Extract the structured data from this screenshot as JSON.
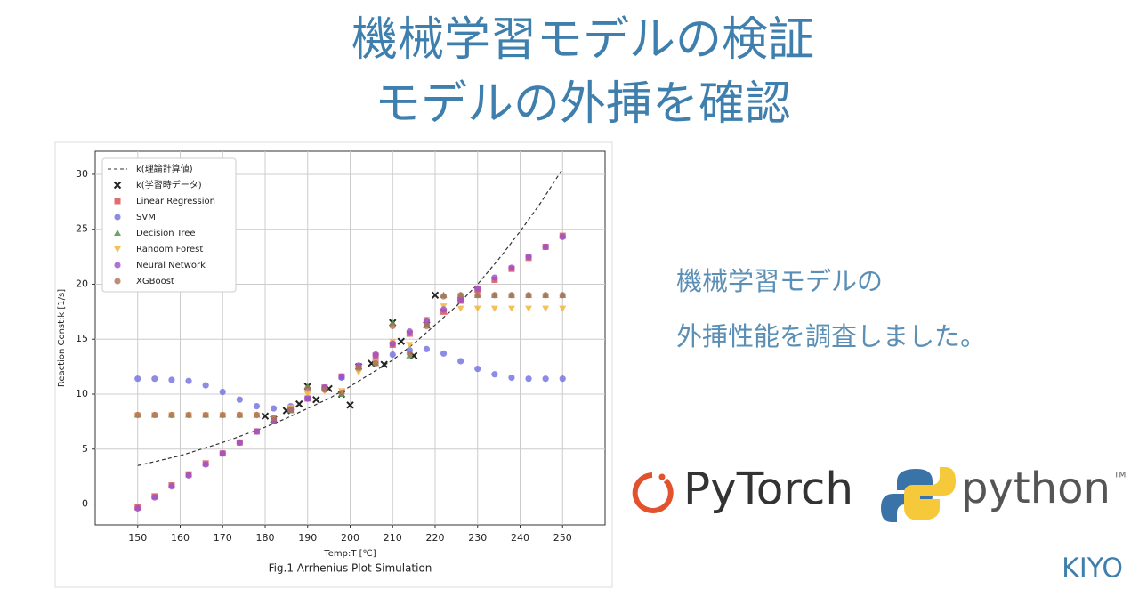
{
  "slide": {
    "title_lines": [
      "機械学習モデルの検証",
      "モデルの外挿を確認"
    ],
    "note_lines": [
      "機械学習モデルの",
      "外挿性能を調査しました。"
    ],
    "logos": [
      "PyTorch",
      "python",
      "TM"
    ],
    "author": "KIYO"
  },
  "chart_data": {
    "type": "scatter",
    "title": "Fig.1 Arrhenius Plot Simulation",
    "x_label": "Temp:T [℃]",
    "y_label": "Reaction Const:k [1/s]",
    "xlim": [
      140,
      260
    ],
    "ylim": [
      -1.9,
      32.1
    ],
    "xticks": [
      150,
      160,
      170,
      180,
      190,
      200,
      210,
      220,
      230,
      240,
      250
    ],
    "yticks": [
      0,
      5,
      10,
      15,
      20,
      25,
      30
    ],
    "grid": true,
    "legend": "upper-left",
    "series": [
      {
        "name": "k(理論計算値)",
        "color": "#333333",
        "marker": "dashed-line",
        "x": [
          150,
          155,
          160,
          165,
          170,
          175,
          180,
          185,
          190,
          195,
          200,
          205,
          210,
          215,
          220,
          225,
          230,
          235,
          240,
          245,
          250
        ],
        "values": [
          3.5,
          3.95,
          4.4,
          5.0,
          5.6,
          6.3,
          7.0,
          7.8,
          8.7,
          9.6,
          10.7,
          11.9,
          13.1,
          14.6,
          16.3,
          18.0,
          20.0,
          22.3,
          24.8,
          27.5,
          30.5
        ]
      },
      {
        "name": "k(学習時データ)",
        "color": "#222222",
        "marker": "x",
        "x": [
          180,
          182,
          185,
          188,
          190,
          192,
          195,
          198,
          200,
          202,
          205,
          208,
          210,
          212,
          215,
          218,
          220
        ],
        "values": [
          8.0,
          7.7,
          8.5,
          9.1,
          10.7,
          9.5,
          10.5,
          10.0,
          9.0,
          12.5,
          12.8,
          12.7,
          16.5,
          14.8,
          13.5,
          16.3,
          19.0
        ]
      },
      {
        "name": "Linear Regression",
        "color": "#d9545c",
        "marker": "square",
        "x": [
          150,
          154,
          158,
          162,
          166,
          170,
          174,
          178,
          182,
          186,
          190,
          194,
          198,
          202,
          206,
          210,
          214,
          218,
          222,
          226,
          230,
          234,
          238,
          242,
          246,
          250
        ],
        "values": [
          -0.3,
          0.7,
          1.7,
          2.7,
          3.7,
          4.6,
          5.6,
          6.6,
          7.6,
          8.6,
          9.6,
          10.6,
          11.6,
          12.5,
          13.5,
          14.5,
          15.5,
          16.5,
          17.5,
          18.5,
          19.5,
          20.4,
          21.4,
          22.4,
          23.4,
          24.4
        ]
      },
      {
        "name": "SVM",
        "color": "#6f6fe0",
        "marker": "circle",
        "x": [
          150,
          154,
          158,
          162,
          166,
          170,
          174,
          178,
          182,
          186,
          190,
          194,
          198,
          202,
          206,
          210,
          214,
          218,
          222,
          226,
          230,
          234,
          238,
          242,
          246,
          250
        ],
        "values": [
          11.4,
          11.4,
          11.3,
          11.2,
          10.8,
          10.2,
          9.5,
          8.9,
          8.7,
          8.9,
          9.6,
          10.5,
          11.5,
          12.3,
          13.0,
          13.6,
          14.0,
          14.1,
          13.7,
          13.0,
          12.3,
          11.8,
          11.5,
          11.4,
          11.4,
          11.4
        ]
      },
      {
        "name": "Decision Tree",
        "color": "#4a9a4a",
        "marker": "triangle",
        "x": [
          150,
          154,
          158,
          162,
          166,
          170,
          174,
          178,
          182,
          186,
          190,
          194,
          198,
          202,
          206,
          210,
          214,
          218,
          222,
          226,
          230,
          234,
          238,
          242,
          246,
          250
        ],
        "values": [
          8.1,
          8.1,
          8.1,
          8.1,
          8.1,
          8.1,
          8.1,
          8.1,
          7.7,
          8.5,
          10.7,
          10.5,
          10.0,
          12.5,
          12.8,
          16.5,
          13.5,
          16.3,
          19.0,
          19.0,
          19.0,
          19.0,
          19.0,
          19.0,
          19.0,
          19.0
        ]
      },
      {
        "name": "Random Forest",
        "color": "#f2b540",
        "marker": "triangle-down",
        "x": [
          150,
          154,
          158,
          162,
          166,
          170,
          174,
          178,
          182,
          186,
          190,
          194,
          198,
          202,
          206,
          210,
          214,
          218,
          222,
          226,
          230,
          234,
          238,
          242,
          246,
          250
        ],
        "values": [
          8.1,
          8.1,
          8.1,
          8.1,
          8.1,
          8.1,
          8.1,
          8.1,
          7.9,
          8.8,
          10.0,
          10.3,
          10.3,
          12.0,
          12.9,
          14.8,
          14.5,
          16.8,
          18.0,
          17.8,
          17.8,
          17.8,
          17.8,
          17.8,
          17.8,
          17.8
        ]
      },
      {
        "name": "Neural Network",
        "color": "#9a4fcf",
        "marker": "circle",
        "x": [
          150,
          154,
          158,
          162,
          166,
          170,
          174,
          178,
          182,
          186,
          190,
          194,
          198,
          202,
          206,
          210,
          214,
          218,
          222,
          226,
          230,
          234,
          238,
          242,
          246,
          250
        ],
        "values": [
          -0.4,
          0.6,
          1.6,
          2.6,
          3.6,
          4.6,
          5.6,
          6.6,
          7.6,
          8.6,
          9.6,
          10.6,
          11.6,
          12.6,
          13.6,
          14.6,
          15.7,
          16.7,
          17.7,
          18.6,
          19.6,
          20.6,
          21.5,
          22.5,
          23.4,
          24.3
        ]
      },
      {
        "name": "XGBoost",
        "color": "#b0705a",
        "marker": "circle",
        "x": [
          150,
          154,
          158,
          162,
          166,
          170,
          174,
          178,
          182,
          186,
          190,
          194,
          198,
          202,
          206,
          210,
          214,
          218,
          222,
          226,
          230,
          234,
          238,
          242,
          246,
          250
        ],
        "values": [
          8.1,
          8.1,
          8.1,
          8.1,
          8.1,
          8.1,
          8.1,
          8.1,
          7.8,
          8.6,
          10.5,
          10.4,
          10.1,
          12.4,
          12.8,
          16.2,
          13.7,
          16.2,
          18.9,
          19.0,
          19.0,
          19.0,
          19.0,
          19.0,
          19.0,
          19.0
        ]
      }
    ]
  }
}
